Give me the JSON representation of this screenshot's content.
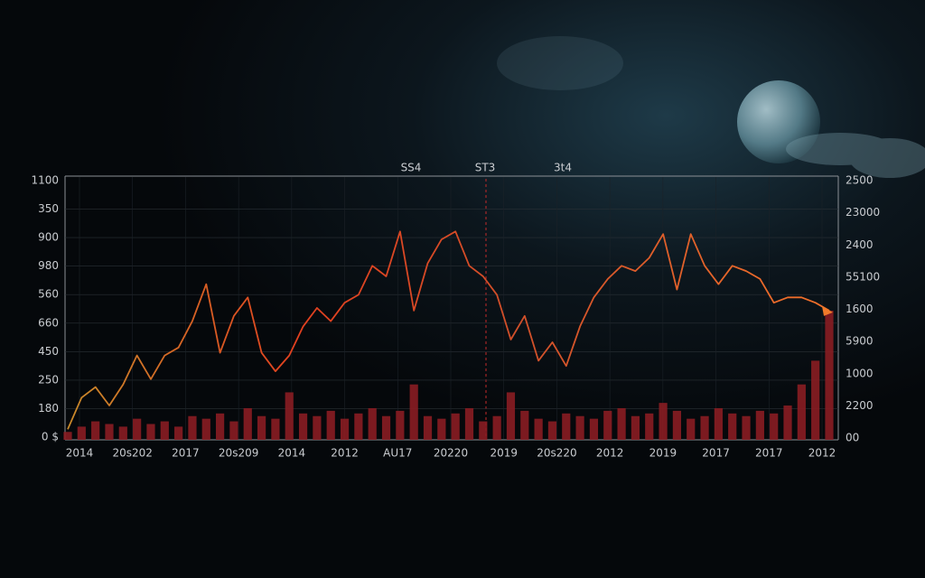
{
  "chart_data": {
    "type": "line",
    "top_labels": [
      "SS4",
      "ST3",
      "3t4"
    ],
    "y_labels": [
      "1100",
      "350",
      "900",
      "980",
      "560",
      "660",
      "450",
      "250",
      "180",
      "0 $"
    ],
    "y2_labels": [
      "2500",
      "23000",
      "2400",
      "55100",
      "1600",
      "5900",
      "1000",
      "2200",
      "00"
    ],
    "x_labels": [
      "2014",
      "20s202",
      "2017",
      "20s209",
      "2014",
      "2012",
      "AU17",
      "20220",
      "2019",
      "20s220",
      "2012",
      "2019",
      "2017",
      "2017",
      "2012"
    ],
    "ylim": [
      0,
      100
    ],
    "y2lim": [
      0,
      100
    ],
    "series": [
      {
        "color": "#e24a26",
        "values": [
          4,
          16,
          20,
          13,
          21,
          32,
          23,
          32,
          35,
          45,
          59,
          33,
          47,
          54,
          33,
          26,
          32,
          43,
          50,
          45,
          52,
          55,
          66,
          62,
          79,
          49,
          67,
          76,
          79,
          66,
          62,
          55,
          38,
          47,
          30,
          37,
          28,
          43,
          54,
          61,
          66,
          64,
          69,
          78,
          57,
          78,
          66,
          59,
          66,
          64,
          61,
          52,
          54,
          54,
          52,
          49
        ]
      },
      {
        "type": "bar",
        "axis": "y2",
        "color": "#8a1d22",
        "values": [
          3,
          5,
          7,
          6,
          5,
          8,
          6,
          7,
          5,
          9,
          8,
          10,
          7,
          12,
          9,
          8,
          18,
          10,
          9,
          11,
          8,
          10,
          12,
          9,
          11,
          21,
          9,
          8,
          10,
          12,
          7,
          9,
          18,
          11,
          8,
          7,
          10,
          9,
          8,
          11,
          12,
          9,
          10,
          14,
          11,
          8,
          9,
          12,
          10,
          9,
          11,
          10,
          13,
          21,
          30,
          49
        ]
      }
    ]
  }
}
